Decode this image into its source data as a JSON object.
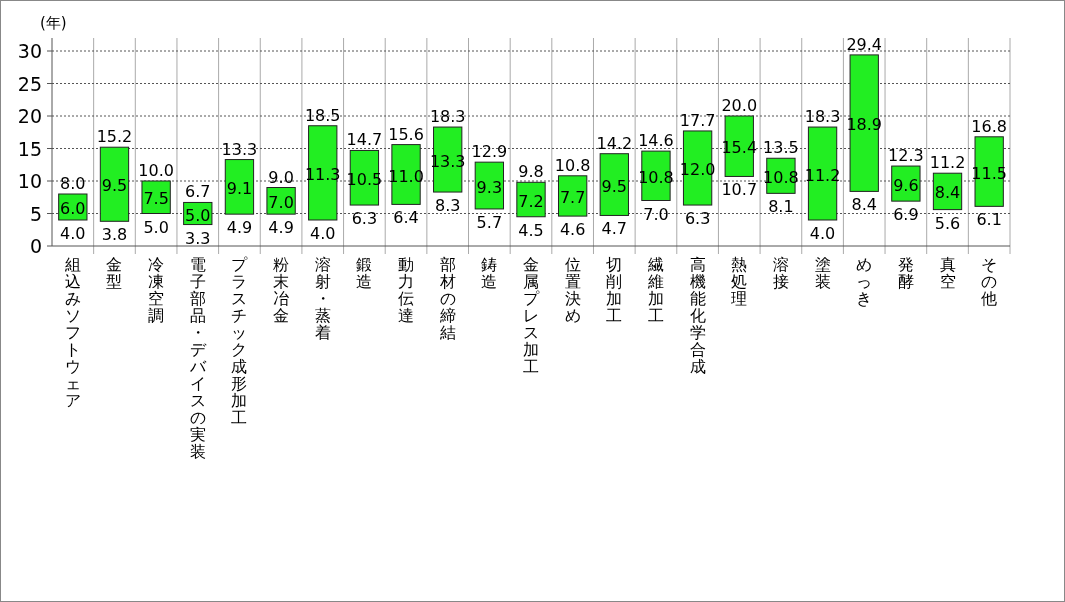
{
  "chart_data": {
    "type": "bar",
    "ylabel": "(年)",
    "categories": [
      "組込みソフトウェア",
      "金型",
      "冷凍空調",
      "電子部品・デバイスの実装",
      "プラスチック成形加工",
      "粉末冶金",
      "溶射・蒸着",
      "鍛造",
      "動力伝達",
      "部材の締結",
      "鋳造",
      "金属プレス加工",
      "位置決め",
      "切削加工",
      "繊維加工",
      "高機能化学合成",
      "熱処理",
      "溶接",
      "塗装",
      "めっき",
      "発酵",
      "真空",
      "その他"
    ],
    "base": [
      4.0,
      3.8,
      5.0,
      3.3,
      4.9,
      4.9,
      4.0,
      6.3,
      6.4,
      8.3,
      5.7,
      4.5,
      4.6,
      4.7,
      7.0,
      6.3,
      10.7,
      8.1,
      4.0,
      8.4,
      6.9,
      5.6,
      6.1
    ],
    "values": [
      4.0,
      11.4,
      5.0,
      3.4,
      8.4,
      4.1,
      14.5,
      8.4,
      9.2,
      10.0,
      7.2,
      5.3,
      6.2,
      9.5,
      7.6,
      11.4,
      9.3,
      5.4,
      14.3,
      21.0,
      5.4,
      5.6,
      10.7
    ],
    "color": "#22ee22",
    "ylim": [
      0,
      32
    ],
    "yticks": [
      0,
      5,
      10,
      15,
      20,
      25,
      30
    ],
    "grid": true,
    "annotations": [
      {
        "text": "4.0",
        "x": "組込みソフトウェア",
        "y": 4.0
      },
      "6.0",
      {
        "text": "8.0",
        "x": "組込みソフトウェア",
        "y": 8.0
      },
      {
        "text": "3.8",
        "x": "金型",
        "y": 3.8
      },
      "9.5",
      {
        "text": "15.2",
        "x": "金型",
        "y": 15.2
      },
      {
        "text": "5.0",
        "x": "冷凍空調",
        "y": 5.0
      },
      "7.5",
      {
        "text": "10.0",
        "x": "冷凍空調",
        "y": 10.0
      },
      {
        "text": "3.3",
        "x": "電子部品・デバイスの実装",
        "y": 3.3
      },
      "5.0",
      {
        "text": "6.7",
        "x": "電子部品・デバイスの実装",
        "y": 6.7
      },
      {
        "text": "4.9",
        "x": "プラスチック成形加工",
        "y": 4.9
      },
      "9.1",
      {
        "text": "13.3",
        "x": "プラスチック成形加工",
        "y": 13.3
      },
      {
        "text": "4.9",
        "x": "粉末冶金",
        "y": 4.9
      },
      "7.0",
      {
        "text": "9.0",
        "x": "粉末冶金",
        "y": 9.0
      },
      {
        "text": "4.0",
        "x": "溶射・蒸着",
        "y": 4.0
      },
      "11.3",
      {
        "text": "18.5",
        "x": "溶射・蒸着",
        "y": 18.5
      },
      {
        "text": "6.3",
        "x": "鍛造",
        "y": 6.3
      },
      "10.5",
      {
        "text": "14.7",
        "x": "鍛造",
        "y": 14.7
      },
      {
        "text": "6.4",
        "x": "動力伝達",
        "y": 6.4
      },
      "11.0",
      {
        "text": "15.6",
        "x": "動力伝達",
        "y": 15.6
      },
      {
        "text": "8.3",
        "x": "部材の締結",
        "y": 8.3
      },
      "13.3",
      {
        "text": "18.3",
        "x": "部材の締結",
        "y": 18.3
      },
      {
        "text": "5.7",
        "x": "鋳造",
        "y": 5.7
      },
      "9.3",
      {
        "text": "12.9",
        "x": "鋳造",
        "y": 12.9
      },
      {
        "text": "4.5",
        "x": "金属プレス加工",
        "y": 4.5
      },
      "7.2",
      {
        "text": "9.8",
        "x": "金属プレス加工",
        "y": 9.8
      },
      {
        "text": "4.6",
        "x": "位置決め",
        "y": 4.6
      },
      "7.7",
      {
        "text": "10.8",
        "x": "位置決め",
        "y": 10.8
      },
      {
        "text": "4.7",
        "x": "切削加工",
        "y": 4.7
      },
      "9.5",
      {
        "text": "14.2",
        "x": "切削加工",
        "y": 14.2
      },
      {
        "text": "7.0",
        "x": "繊維加工",
        "y": 7.0
      },
      "10.8",
      {
        "text": "14.6",
        "x": "繊維加工",
        "y": 14.6
      },
      {
        "text": "6.3",
        "x": "高機能化学合成",
        "y": 6.3
      },
      "12.0",
      {
        "text": "17.7",
        "x": "高機能化学合成",
        "y": 17.7
      },
      {
        "text": "10.7",
        "x": "熱処理",
        "y": 10.7
      },
      "15.4",
      {
        "text": "20.0",
        "x": "熱処理",
        "y": 20.0
      },
      {
        "text": "8.1",
        "x": "溶接",
        "y": 8.1
      },
      "10.8",
      {
        "text": "13.5",
        "x": "溶接",
        "y": 13.5
      },
      {
        "text": "4.0",
        "x": "塗装",
        "y": 4.0
      },
      "11.2",
      {
        "text": "18.3",
        "x": "塗装",
        "y": 18.3
      },
      {
        "text": "8.4",
        "x": "めっき",
        "y": 8.4
      },
      "18.9",
      {
        "text": "29.4",
        "x": "めっき",
        "y": 29.4
      },
      {
        "text": "6.9",
        "x": "発酵",
        "y": 6.9
      },
      "9.6",
      {
        "text": "12.3",
        "x": "発酵",
        "y": 12.3
      },
      {
        "text": "5.6",
        "x": "真空",
        "y": 5.6
      },
      "8.4",
      {
        "text": "11.2",
        "x": "真空",
        "y": 11.2
      },
      {
        "text": "6.1",
        "x": "その他",
        "y": 6.1
      },
      "11.5",
      {
        "text": "16.8",
        "x": "その他",
        "y": 16.8
      }
    ]
  }
}
